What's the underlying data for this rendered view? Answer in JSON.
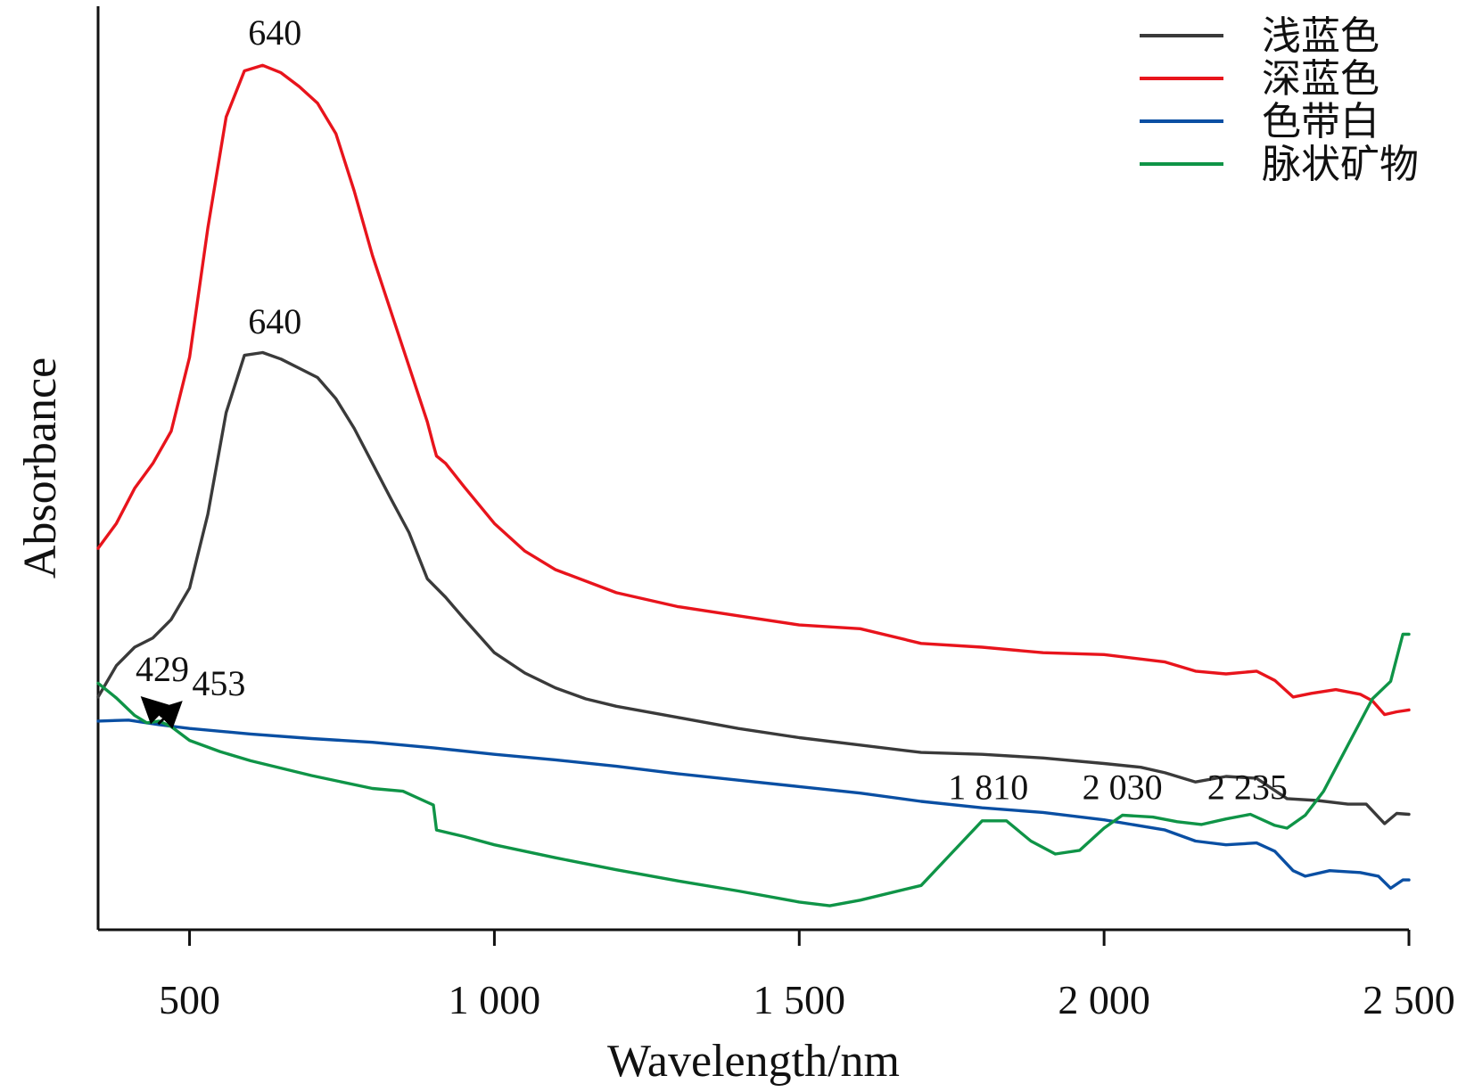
{
  "chart_data": {
    "type": "line",
    "xlabel": "Wavelength/nm",
    "ylabel": "Absorbance",
    "xlim": [
      350,
      2500
    ],
    "ylim": [
      0,
      1
    ],
    "x_ticks": [
      500,
      1000,
      1500,
      2000,
      2500
    ],
    "x_tick_labels": [
      "500",
      "1 000",
      "1 500",
      "2 000",
      "2 500"
    ],
    "y_tick_labels_shown": false,
    "grid": false,
    "legend_position": "top-right",
    "series": [
      {
        "name": "浅蓝色",
        "color": "#3a3a3a",
        "points": [
          [
            350,
            0.252
          ],
          [
            380,
            0.286
          ],
          [
            410,
            0.306
          ],
          [
            440,
            0.316
          ],
          [
            470,
            0.336
          ],
          [
            500,
            0.37
          ],
          [
            530,
            0.45
          ],
          [
            560,
            0.56
          ],
          [
            590,
            0.622
          ],
          [
            620,
            0.625
          ],
          [
            650,
            0.618
          ],
          [
            680,
            0.608
          ],
          [
            710,
            0.598
          ],
          [
            740,
            0.575
          ],
          [
            770,
            0.543
          ],
          [
            800,
            0.505
          ],
          [
            830,
            0.467
          ],
          [
            860,
            0.43
          ],
          [
            890,
            0.38
          ],
          [
            920,
            0.36
          ],
          [
            950,
            0.337
          ],
          [
            1000,
            0.3
          ],
          [
            1050,
            0.278
          ],
          [
            1100,
            0.262
          ],
          [
            1150,
            0.25
          ],
          [
            1200,
            0.242
          ],
          [
            1300,
            0.23
          ],
          [
            1400,
            0.218
          ],
          [
            1500,
            0.208
          ],
          [
            1600,
            0.2
          ],
          [
            1700,
            0.192
          ],
          [
            1800,
            0.19
          ],
          [
            1900,
            0.186
          ],
          [
            2000,
            0.18
          ],
          [
            2060,
            0.176
          ],
          [
            2100,
            0.17
          ],
          [
            2150,
            0.16
          ],
          [
            2200,
            0.166
          ],
          [
            2250,
            0.164
          ],
          [
            2300,
            0.142
          ],
          [
            2350,
            0.14
          ],
          [
            2400,
            0.136
          ],
          [
            2430,
            0.136
          ],
          [
            2460,
            0.115
          ],
          [
            2480,
            0.126
          ],
          [
            2500,
            0.125
          ]
        ]
      },
      {
        "name": "深蓝色",
        "color": "#e8141c",
        "points": [
          [
            350,
            0.413
          ],
          [
            380,
            0.44
          ],
          [
            410,
            0.478
          ],
          [
            440,
            0.505
          ],
          [
            470,
            0.54
          ],
          [
            500,
            0.62
          ],
          [
            530,
            0.76
          ],
          [
            560,
            0.88
          ],
          [
            590,
            0.93
          ],
          [
            620,
            0.936
          ],
          [
            650,
            0.928
          ],
          [
            680,
            0.913
          ],
          [
            710,
            0.895
          ],
          [
            740,
            0.862
          ],
          [
            770,
            0.8
          ],
          [
            800,
            0.73
          ],
          [
            830,
            0.67
          ],
          [
            860,
            0.61
          ],
          [
            890,
            0.55
          ],
          [
            900,
            0.525
          ],
          [
            905,
            0.513
          ],
          [
            920,
            0.505
          ],
          [
            950,
            0.48
          ],
          [
            1000,
            0.44
          ],
          [
            1050,
            0.41
          ],
          [
            1100,
            0.39
          ],
          [
            1200,
            0.365
          ],
          [
            1300,
            0.35
          ],
          [
            1400,
            0.34
          ],
          [
            1500,
            0.33
          ],
          [
            1600,
            0.326
          ],
          [
            1700,
            0.31
          ],
          [
            1800,
            0.306
          ],
          [
            1900,
            0.3
          ],
          [
            2000,
            0.298
          ],
          [
            2100,
            0.29
          ],
          [
            2150,
            0.28
          ],
          [
            2200,
            0.277
          ],
          [
            2250,
            0.28
          ],
          [
            2280,
            0.27
          ],
          [
            2310,
            0.252
          ],
          [
            2340,
            0.256
          ],
          [
            2380,
            0.26
          ],
          [
            2420,
            0.255
          ],
          [
            2440,
            0.248
          ],
          [
            2460,
            0.233
          ],
          [
            2480,
            0.236
          ],
          [
            2500,
            0.238
          ]
        ]
      },
      {
        "name": "色带白",
        "color": "#0a4fa3",
        "points": [
          [
            350,
            0.226
          ],
          [
            400,
            0.227
          ],
          [
            450,
            0.222
          ],
          [
            500,
            0.218
          ],
          [
            600,
            0.212
          ],
          [
            700,
            0.207
          ],
          [
            800,
            0.203
          ],
          [
            900,
            0.197
          ],
          [
            1000,
            0.19
          ],
          [
            1100,
            0.184
          ],
          [
            1200,
            0.177
          ],
          [
            1300,
            0.169
          ],
          [
            1400,
            0.162
          ],
          [
            1500,
            0.155
          ],
          [
            1600,
            0.148
          ],
          [
            1700,
            0.139
          ],
          [
            1800,
            0.132
          ],
          [
            1900,
            0.127
          ],
          [
            2000,
            0.119
          ],
          [
            2100,
            0.108
          ],
          [
            2150,
            0.096
          ],
          [
            2200,
            0.092
          ],
          [
            2250,
            0.094
          ],
          [
            2280,
            0.085
          ],
          [
            2310,
            0.064
          ],
          [
            2330,
            0.058
          ],
          [
            2370,
            0.064
          ],
          [
            2420,
            0.062
          ],
          [
            2450,
            0.058
          ],
          [
            2470,
            0.045
          ],
          [
            2490,
            0.054
          ],
          [
            2500,
            0.054
          ]
        ]
      },
      {
        "name": "脉状矿物",
        "color": "#0f9447",
        "points": [
          [
            350,
            0.267
          ],
          [
            380,
            0.251
          ],
          [
            410,
            0.232
          ],
          [
            430,
            0.224
          ],
          [
            450,
            0.226
          ],
          [
            470,
            0.22
          ],
          [
            500,
            0.205
          ],
          [
            550,
            0.193
          ],
          [
            600,
            0.183
          ],
          [
            700,
            0.167
          ],
          [
            800,
            0.153
          ],
          [
            850,
            0.15
          ],
          [
            890,
            0.138
          ],
          [
            900,
            0.135
          ],
          [
            905,
            0.108
          ],
          [
            950,
            0.101
          ],
          [
            1000,
            0.092
          ],
          [
            1100,
            0.078
          ],
          [
            1200,
            0.065
          ],
          [
            1300,
            0.053
          ],
          [
            1400,
            0.042
          ],
          [
            1500,
            0.03
          ],
          [
            1550,
            0.026
          ],
          [
            1600,
            0.032
          ],
          [
            1700,
            0.048
          ],
          [
            1750,
            0.083
          ],
          [
            1800,
            0.118
          ],
          [
            1840,
            0.118
          ],
          [
            1880,
            0.096
          ],
          [
            1920,
            0.082
          ],
          [
            1960,
            0.086
          ],
          [
            2000,
            0.11
          ],
          [
            2030,
            0.124
          ],
          [
            2080,
            0.122
          ],
          [
            2120,
            0.117
          ],
          [
            2160,
            0.114
          ],
          [
            2200,
            0.12
          ],
          [
            2240,
            0.125
          ],
          [
            2280,
            0.113
          ],
          [
            2300,
            0.11
          ],
          [
            2330,
            0.124
          ],
          [
            2360,
            0.15
          ],
          [
            2400,
            0.2
          ],
          [
            2440,
            0.25
          ],
          [
            2470,
            0.269
          ],
          [
            2490,
            0.32
          ],
          [
            2500,
            0.32
          ]
        ]
      }
    ],
    "annotations": [
      {
        "text": "640",
        "x": 640,
        "y": 0.945
      },
      {
        "text": "640",
        "x": 640,
        "y": 0.632
      },
      {
        "text": "429",
        "x": 429,
        "y": 0.248
      },
      {
        "text": "453",
        "x": 453,
        "y": 0.244
      },
      {
        "text": "1 810",
        "x": 1810,
        "y": 0.128
      },
      {
        "text": "2 030",
        "x": 2030,
        "y": 0.128
      },
      {
        "text": "2 235",
        "x": 2235,
        "y": 0.128
      }
    ]
  }
}
